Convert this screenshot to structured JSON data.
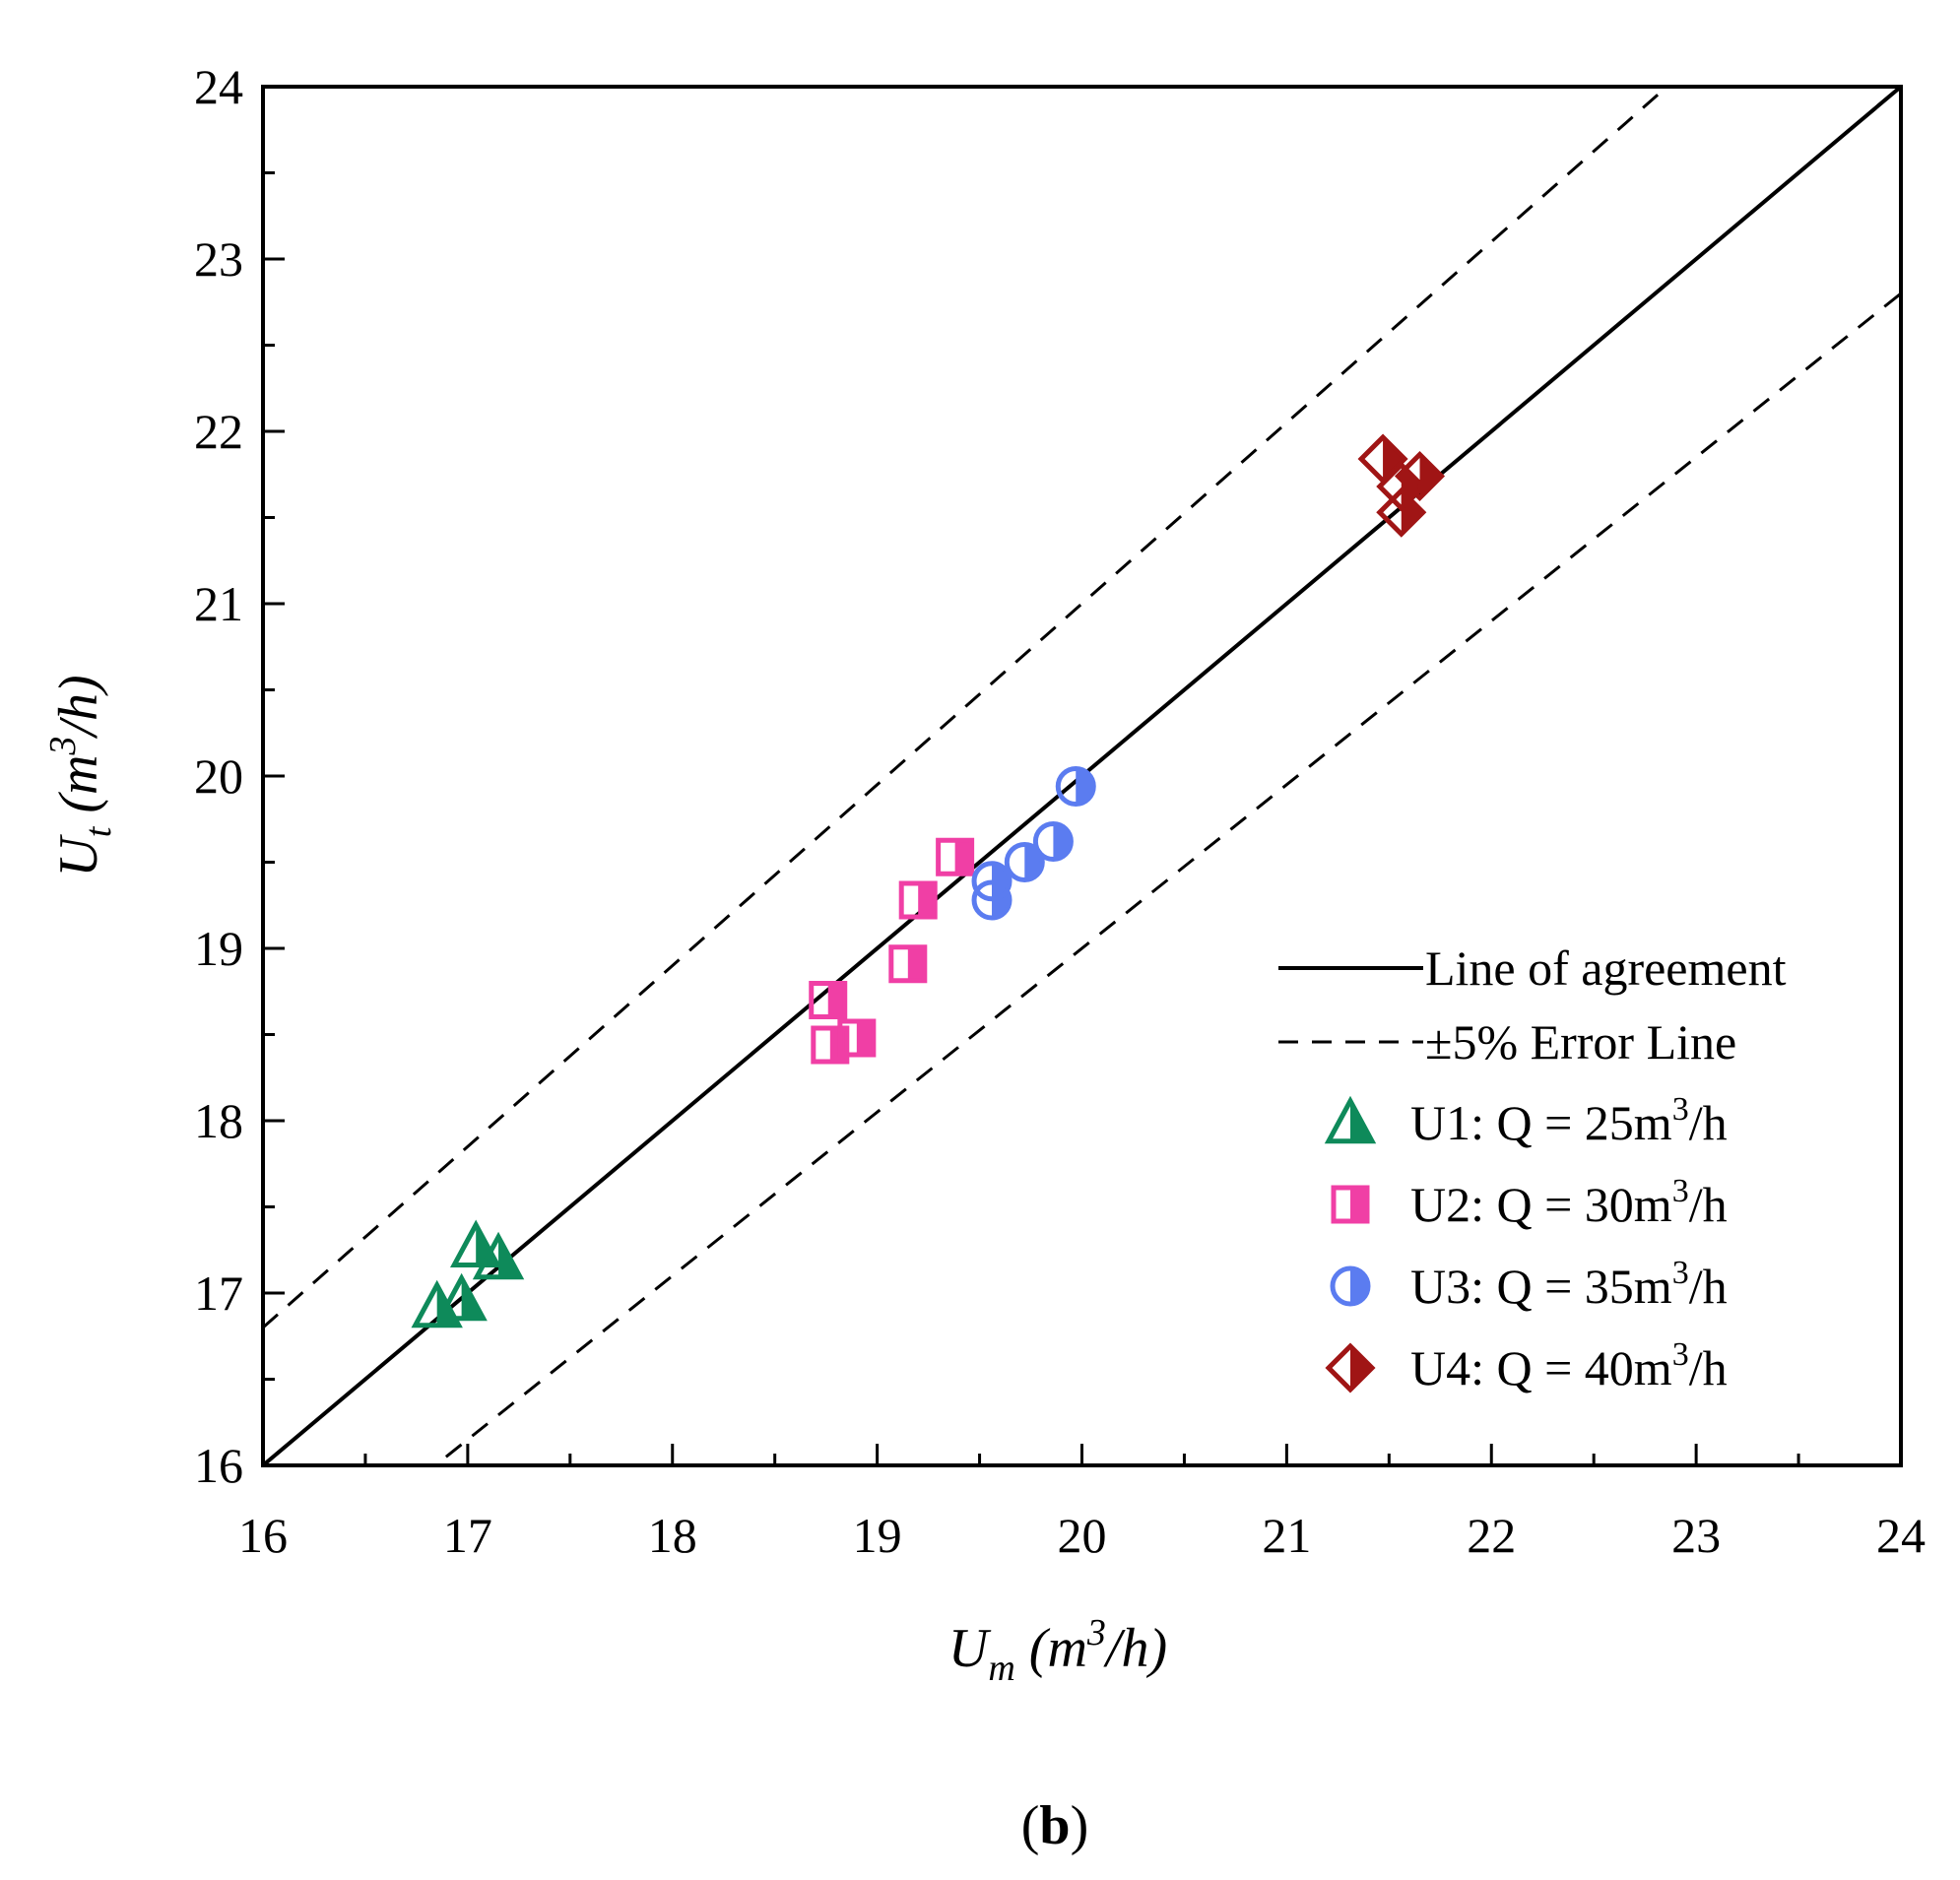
{
  "chart_data": {
    "type": "scatter",
    "title": "",
    "xlabel": {
      "main": "U",
      "sub": "m",
      "unit_pre": " (m",
      "unit_sup": "3",
      "unit_post": "/h)"
    },
    "ylabel": {
      "main": "U",
      "sub": "t",
      "unit_pre": " (m",
      "unit_sup": "3",
      "unit_post": "/h)"
    },
    "xlim": [
      16,
      24
    ],
    "ylim": [
      16,
      24
    ],
    "xticks": [
      "16",
      "17",
      "18",
      "19",
      "20",
      "21",
      "22",
      "23",
      "24"
    ],
    "yticks": [
      "16",
      "17",
      "18",
      "19",
      "20",
      "21",
      "22",
      "23",
      "24"
    ],
    "grid": false,
    "legend_position": "bottom-right",
    "reference_lines": [
      {
        "name": "Line of agreement",
        "label": "Line of agreement",
        "style": "solid",
        "factor": 1.0
      },
      {
        "name": "+5% error",
        "label": "±5% Error Line",
        "style": "dashed",
        "factor": 1.05
      },
      {
        "name": "-5% error",
        "label": "",
        "style": "dashed",
        "factor": 0.95
      }
    ],
    "series": [
      {
        "name": "U1",
        "label_pre": "U1: Q = 25m",
        "label_sup": "3",
        "label_post": "/h",
        "marker": "triangle",
        "color": "#0E8A5A",
        "x": [
          16.85,
          16.97,
          17.04,
          17.15
        ],
        "y": [
          16.92,
          16.96,
          17.27,
          17.2
        ]
      },
      {
        "name": "U2",
        "label_pre": "U2: Q = 30m",
        "label_sup": "3",
        "label_post": "/h",
        "marker": "square",
        "color": "#F03FA5",
        "x": [
          18.76,
          18.77,
          18.9,
          19.15,
          19.2,
          19.38
        ],
        "y": [
          18.7,
          18.44,
          18.48,
          18.91,
          19.28,
          19.53
        ]
      },
      {
        "name": "U3",
        "label_pre": "U3: Q = 35m",
        "label_sup": "3",
        "label_post": "/h",
        "marker": "circle",
        "color": "#5B7CF0",
        "x": [
          19.56,
          19.56,
          19.72,
          19.86,
          19.97
        ],
        "y": [
          19.28,
          19.39,
          19.5,
          19.62,
          19.94
        ]
      },
      {
        "name": "U4",
        "label_pre": "U4: Q = 40m",
        "label_sup": "3",
        "label_post": "/h",
        "marker": "diamond",
        "color": "#A01515",
        "x": [
          21.47,
          21.56,
          21.56,
          21.65
        ],
        "y": [
          21.84,
          21.53,
          21.68,
          21.74
        ]
      }
    ]
  },
  "caption": {
    "open": "(",
    "letter": "b",
    "close": ")"
  }
}
